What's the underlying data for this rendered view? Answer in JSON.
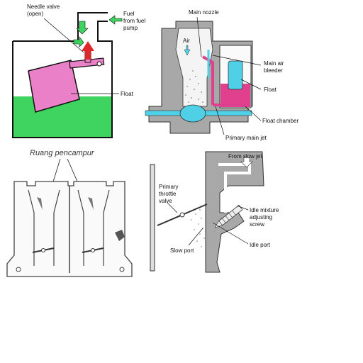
{
  "panel1": {
    "needle_valve": "Needle valve",
    "needle_valve_state": "(open)",
    "fuel_1": "Fuel",
    "fuel_2": "from fuel",
    "fuel_3": "pump",
    "float": "Float"
  },
  "panel2": {
    "main_nozzle": "Main nozzle",
    "air": "Air",
    "main_air_bleeder_1": "Main air",
    "main_air_bleeder_2": "bleeder",
    "float": "Float",
    "float_chamber": "Float chamber",
    "primary_main_jet": "Primary main jet"
  },
  "panel3": {
    "title": "Ruang pencampur"
  },
  "panel4": {
    "from_slow_jet": "From slow jet",
    "primary_1": "Primary",
    "primary_2": "throttle",
    "primary_3": "valve",
    "idle_mix_1": "Idle mixture",
    "idle_mix_2": "adjusting",
    "idle_mix_3": "screw",
    "slow_port": "Slow port",
    "idle_port": "Idle port"
  },
  "colors": {
    "fuel_green": "#3fd460",
    "float_pink": "#ea80c8",
    "arrow_red": "#e0282a",
    "housing_gray": "#a8a8a8",
    "fuel_cyan": "#4fd0e6",
    "fuel_magenta": "#e0408e"
  }
}
